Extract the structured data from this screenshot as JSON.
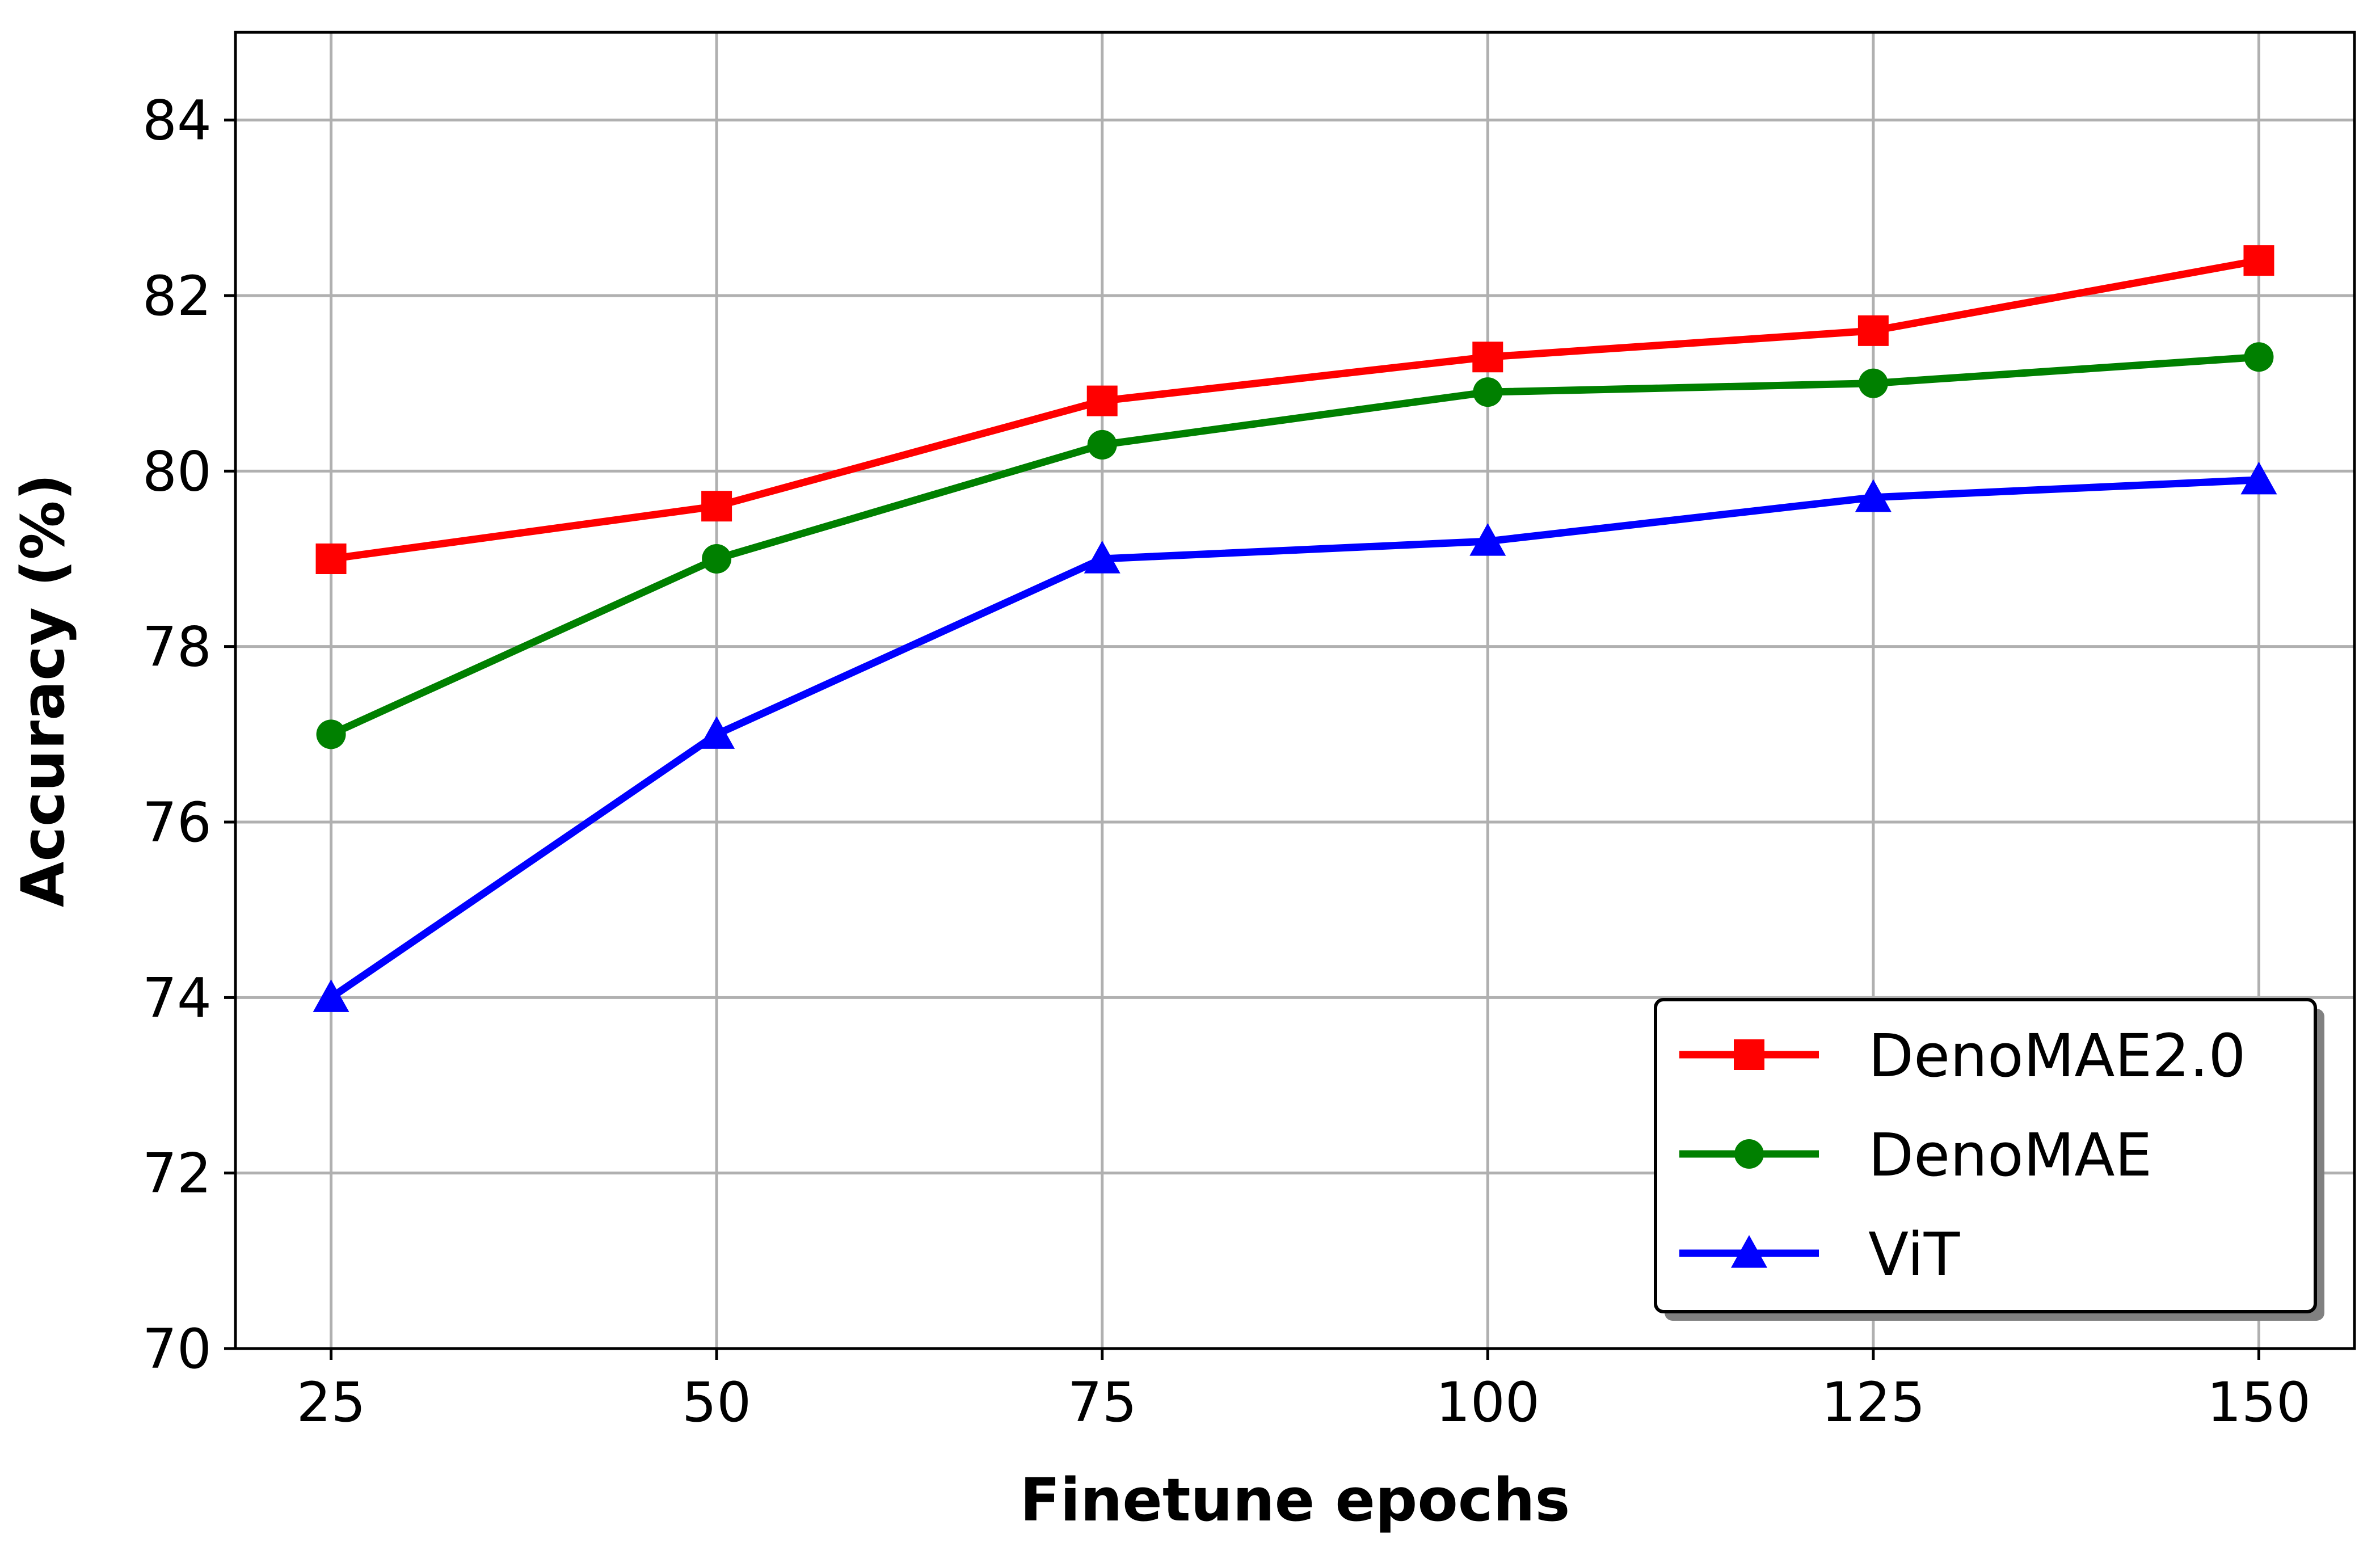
{
  "chart_data": {
    "type": "line",
    "title": "",
    "xlabel": "Finetune epochs",
    "ylabel": "Accuracy (%)",
    "x": [
      25,
      50,
      75,
      100,
      125,
      150
    ],
    "xticks": [
      25,
      50,
      75,
      100,
      125,
      150
    ],
    "xtick_labels": [
      "25",
      "50",
      "75",
      "100",
      "125",
      "150"
    ],
    "yticks": [
      70,
      72,
      74,
      76,
      78,
      80,
      82,
      84
    ],
    "ytick_labels": [
      "70",
      "72",
      "74",
      "76",
      "78",
      "80",
      "82",
      "84"
    ],
    "xlim": [
      18.8,
      156.2
    ],
    "ylim": [
      70,
      85
    ],
    "grid": true,
    "legend_position": "lower-right",
    "series": [
      {
        "name": "DenoMAE2.0",
        "color": "#ff0000",
        "marker": "square",
        "values": [
          79.0,
          79.6,
          80.8,
          81.3,
          81.6,
          82.4
        ]
      },
      {
        "name": "DenoMAE",
        "color": "#008000",
        "marker": "circle",
        "values": [
          77.0,
          79.0,
          80.3,
          80.9,
          81.0,
          81.3
        ]
      },
      {
        "name": "ViT",
        "color": "#0000ff",
        "marker": "triangle-up",
        "values": [
          74.0,
          77.0,
          79.0,
          79.2,
          79.7,
          79.9
        ]
      }
    ]
  }
}
